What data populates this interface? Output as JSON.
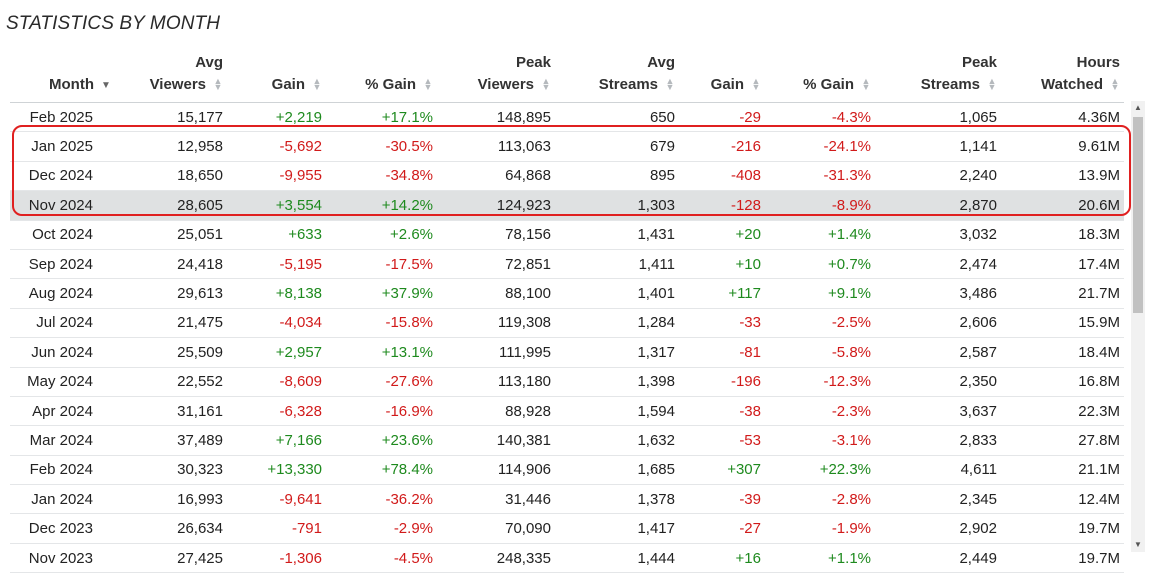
{
  "title": "STATISTICS BY MONTH",
  "columns": [
    {
      "line1": "",
      "line2": "Month",
      "sort": "desc"
    },
    {
      "line1": "Avg",
      "line2": "Viewers",
      "sort": "none"
    },
    {
      "line1": "",
      "line2": "Gain",
      "sort": "none"
    },
    {
      "line1": "",
      "line2": "% Gain",
      "sort": "none"
    },
    {
      "line1": "Peak",
      "line2": "Viewers",
      "sort": "none"
    },
    {
      "line1": "Avg",
      "line2": "Streams",
      "sort": "none"
    },
    {
      "line1": "",
      "line2": "Gain",
      "sort": "none"
    },
    {
      "line1": "",
      "line2": "% Gain",
      "sort": "none"
    },
    {
      "line1": "Peak",
      "line2": "Streams",
      "sort": "none"
    },
    {
      "line1": "Hours",
      "line2": "Watched",
      "sort": "none"
    }
  ],
  "rows": [
    {
      "month": "Feb 2025",
      "avg_viewers": "15,177",
      "gain": "+2,219",
      "pct_gain": "+17.1%",
      "peak_viewers": "148,895",
      "avg_streams": "650",
      "s_gain": "-29",
      "s_pct_gain": "-4.3%",
      "peak_streams": "1,065",
      "hours": "4.36M"
    },
    {
      "month": "Jan 2025",
      "avg_viewers": "12,958",
      "gain": "-5,692",
      "pct_gain": "-30.5%",
      "peak_viewers": "113,063",
      "avg_streams": "679",
      "s_gain": "-216",
      "s_pct_gain": "-24.1%",
      "peak_streams": "1,141",
      "hours": "9.61M"
    },
    {
      "month": "Dec 2024",
      "avg_viewers": "18,650",
      "gain": "-9,955",
      "pct_gain": "-34.8%",
      "peak_viewers": "64,868",
      "avg_streams": "895",
      "s_gain": "-408",
      "s_pct_gain": "-31.3%",
      "peak_streams": "2,240",
      "hours": "13.9M"
    },
    {
      "month": "Nov 2024",
      "avg_viewers": "28,605",
      "gain": "+3,554",
      "pct_gain": "+14.2%",
      "peak_viewers": "124,923",
      "avg_streams": "1,303",
      "s_gain": "-128",
      "s_pct_gain": "-8.9%",
      "peak_streams": "2,870",
      "hours": "20.6M"
    },
    {
      "month": "Oct 2024",
      "avg_viewers": "25,051",
      "gain": "+633",
      "pct_gain": "+2.6%",
      "peak_viewers": "78,156",
      "avg_streams": "1,431",
      "s_gain": "+20",
      "s_pct_gain": "+1.4%",
      "peak_streams": "3,032",
      "hours": "18.3M"
    },
    {
      "month": "Sep 2024",
      "avg_viewers": "24,418",
      "gain": "-5,195",
      "pct_gain": "-17.5%",
      "peak_viewers": "72,851",
      "avg_streams": "1,411",
      "s_gain": "+10",
      "s_pct_gain": "+0.7%",
      "peak_streams": "2,474",
      "hours": "17.4M"
    },
    {
      "month": "Aug 2024",
      "avg_viewers": "29,613",
      "gain": "+8,138",
      "pct_gain": "+37.9%",
      "peak_viewers": "88,100",
      "avg_streams": "1,401",
      "s_gain": "+117",
      "s_pct_gain": "+9.1%",
      "peak_streams": "3,486",
      "hours": "21.7M"
    },
    {
      "month": "Jul 2024",
      "avg_viewers": "21,475",
      "gain": "-4,034",
      "pct_gain": "-15.8%",
      "peak_viewers": "119,308",
      "avg_streams": "1,284",
      "s_gain": "-33",
      "s_pct_gain": "-2.5%",
      "peak_streams": "2,606",
      "hours": "15.9M"
    },
    {
      "month": "Jun 2024",
      "avg_viewers": "25,509",
      "gain": "+2,957",
      "pct_gain": "+13.1%",
      "peak_viewers": "111,995",
      "avg_streams": "1,317",
      "s_gain": "-81",
      "s_pct_gain": "-5.8%",
      "peak_streams": "2,587",
      "hours": "18.4M"
    },
    {
      "month": "May 2024",
      "avg_viewers": "22,552",
      "gain": "-8,609",
      "pct_gain": "-27.6%",
      "peak_viewers": "113,180",
      "avg_streams": "1,398",
      "s_gain": "-196",
      "s_pct_gain": "-12.3%",
      "peak_streams": "2,350",
      "hours": "16.8M"
    },
    {
      "month": "Apr 2024",
      "avg_viewers": "31,161",
      "gain": "-6,328",
      "pct_gain": "-16.9%",
      "peak_viewers": "88,928",
      "avg_streams": "1,594",
      "s_gain": "-38",
      "s_pct_gain": "-2.3%",
      "peak_streams": "3,637",
      "hours": "22.3M"
    },
    {
      "month": "Mar 2024",
      "avg_viewers": "37,489",
      "gain": "+7,166",
      "pct_gain": "+23.6%",
      "peak_viewers": "140,381",
      "avg_streams": "1,632",
      "s_gain": "-53",
      "s_pct_gain": "-3.1%",
      "peak_streams": "2,833",
      "hours": "27.8M"
    },
    {
      "month": "Feb 2024",
      "avg_viewers": "30,323",
      "gain": "+13,330",
      "pct_gain": "+78.4%",
      "peak_viewers": "114,906",
      "avg_streams": "1,685",
      "s_gain": "+307",
      "s_pct_gain": "+22.3%",
      "peak_streams": "4,611",
      "hours": "21.1M"
    },
    {
      "month": "Jan 2024",
      "avg_viewers": "16,993",
      "gain": "-9,641",
      "pct_gain": "-36.2%",
      "peak_viewers": "31,446",
      "avg_streams": "1,378",
      "s_gain": "-39",
      "s_pct_gain": "-2.8%",
      "peak_streams": "2,345",
      "hours": "12.4M"
    },
    {
      "month": "Dec 2023",
      "avg_viewers": "26,634",
      "gain": "-791",
      "pct_gain": "-2.9%",
      "peak_viewers": "70,090",
      "avg_streams": "1,417",
      "s_gain": "-27",
      "s_pct_gain": "-1.9%",
      "peak_streams": "2,902",
      "hours": "19.7M"
    },
    {
      "month": "Nov 2023",
      "avg_viewers": "27,425",
      "gain": "-1,306",
      "pct_gain": "-4.5%",
      "peak_viewers": "248,335",
      "avg_streams": "1,444",
      "s_gain": "+16",
      "s_pct_gain": "+1.1%",
      "peak_streams": "2,449",
      "hours": "19.7M"
    }
  ],
  "highlighted_rows": [
    "Jan 2025",
    "Dec 2024",
    "Nov 2024"
  ],
  "shaded_row": "Nov 2024",
  "colors": {
    "positive": "#1e8a1e",
    "negative": "#d11a1a",
    "highlight": "#e02020"
  },
  "icons": {
    "sort_active": "sort-desc-icon",
    "sort_inactive": "sort-both-icon"
  }
}
